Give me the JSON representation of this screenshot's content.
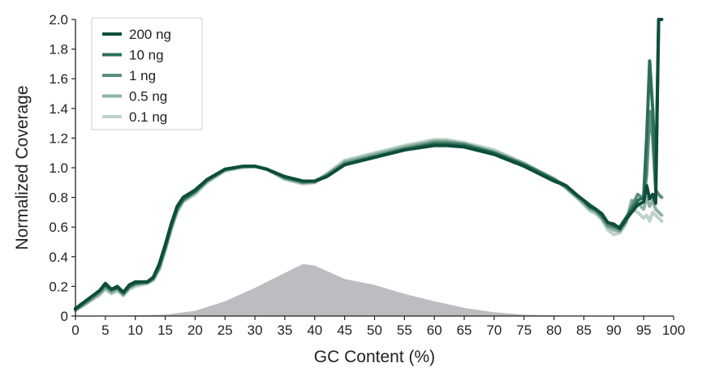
{
  "chart_data": {
    "type": "line",
    "title": "",
    "xlabel": "GC Content (%)",
    "ylabel": "Normalized Coverage",
    "xlim": [
      0,
      100
    ],
    "ylim": [
      0,
      2.0
    ],
    "x_ticks": [
      "0",
      "5",
      "10",
      "15",
      "20",
      "25",
      "30",
      "35",
      "40",
      "45",
      "50",
      "55",
      "60",
      "65",
      "70",
      "75",
      "80",
      "85",
      "90",
      "95",
      "100"
    ],
    "y_ticks": [
      "0",
      "0.2",
      "0.4",
      "0.6",
      "0.8",
      "1.0",
      "1.2",
      "1.4",
      "1.6",
      "1.8",
      "2.0"
    ],
    "grid": false,
    "legend_position": "top-left",
    "x": [
      0,
      2,
      4,
      5,
      6,
      7,
      8,
      9,
      10,
      11,
      12,
      13,
      14,
      15,
      16,
      17,
      18,
      20,
      22,
      25,
      28,
      30,
      32,
      35,
      38,
      40,
      42,
      45,
      50,
      55,
      60,
      62,
      65,
      70,
      75,
      80,
      82,
      84,
      85,
      86,
      87,
      88,
      89,
      90,
      91,
      92,
      93,
      94,
      95,
      95.5,
      96,
      96.5,
      97,
      97.5,
      98
    ],
    "series": [
      {
        "name": "200 ng",
        "color": "#0e4d3c",
        "values": [
          0.05,
          0.11,
          0.17,
          0.22,
          0.18,
          0.2,
          0.16,
          0.21,
          0.23,
          0.23,
          0.23,
          0.26,
          0.35,
          0.48,
          0.62,
          0.74,
          0.8,
          0.85,
          0.92,
          0.99,
          1.01,
          1.01,
          0.99,
          0.94,
          0.91,
          0.91,
          0.94,
          1.02,
          1.07,
          1.12,
          1.15,
          1.15,
          1.14,
          1.09,
          1.01,
          0.91,
          0.88,
          0.81,
          0.78,
          0.74,
          0.72,
          0.69,
          0.63,
          0.62,
          0.59,
          0.65,
          0.7,
          0.75,
          0.77,
          0.88,
          0.79,
          0.82,
          0.76,
          2.0,
          2.0
        ]
      },
      {
        "name": "10 ng",
        "color": "#2c6f58",
        "values": [
          0.05,
          0.11,
          0.17,
          0.21,
          0.18,
          0.19,
          0.16,
          0.2,
          0.22,
          0.23,
          0.23,
          0.26,
          0.34,
          0.47,
          0.61,
          0.73,
          0.79,
          0.84,
          0.92,
          0.99,
          1.01,
          1.01,
          0.99,
          0.94,
          0.91,
          0.91,
          0.94,
          1.02,
          1.07,
          1.12,
          1.16,
          1.16,
          1.15,
          1.1,
          1.02,
          0.92,
          0.88,
          0.81,
          0.78,
          0.75,
          0.72,
          0.68,
          0.63,
          0.61,
          0.6,
          0.66,
          0.72,
          0.78,
          0.8,
          1.2,
          1.72,
          1.4,
          0.9,
          2.0,
          2.0
        ]
      },
      {
        "name": "1 ng",
        "color": "#5e8f7a",
        "values": [
          0.04,
          0.1,
          0.16,
          0.2,
          0.17,
          0.19,
          0.15,
          0.2,
          0.22,
          0.22,
          0.23,
          0.25,
          0.33,
          0.46,
          0.6,
          0.72,
          0.78,
          0.84,
          0.91,
          0.99,
          1.01,
          1.01,
          0.99,
          0.93,
          0.9,
          0.91,
          0.95,
          1.03,
          1.08,
          1.13,
          1.17,
          1.17,
          1.16,
          1.1,
          1.02,
          0.92,
          0.87,
          0.8,
          0.77,
          0.73,
          0.71,
          0.67,
          0.61,
          0.6,
          0.58,
          0.64,
          0.74,
          0.82,
          0.79,
          0.95,
          1.38,
          1.2,
          0.85,
          0.82,
          0.8
        ]
      },
      {
        "name": "0.5 ng",
        "color": "#8fb2a2",
        "values": [
          0.04,
          0.09,
          0.15,
          0.19,
          0.16,
          0.18,
          0.14,
          0.19,
          0.21,
          0.22,
          0.22,
          0.25,
          0.32,
          0.45,
          0.59,
          0.71,
          0.78,
          0.83,
          0.91,
          0.98,
          1.01,
          1.01,
          0.99,
          0.93,
          0.9,
          0.9,
          0.95,
          1.04,
          1.09,
          1.14,
          1.18,
          1.18,
          1.16,
          1.11,
          1.03,
          0.92,
          0.87,
          0.8,
          0.76,
          0.72,
          0.7,
          0.66,
          0.6,
          0.58,
          0.57,
          0.63,
          0.78,
          0.76,
          0.72,
          0.8,
          0.74,
          0.78,
          0.72,
          0.7,
          0.68
        ]
      },
      {
        "name": "0.1 ng",
        "color": "#bed3c8",
        "values": [
          0.04,
          0.09,
          0.14,
          0.18,
          0.15,
          0.17,
          0.14,
          0.18,
          0.2,
          0.21,
          0.22,
          0.24,
          0.31,
          0.44,
          0.58,
          0.7,
          0.77,
          0.82,
          0.9,
          0.98,
          1.0,
          1.01,
          0.99,
          0.92,
          0.89,
          0.9,
          0.96,
          1.05,
          1.1,
          1.15,
          1.19,
          1.19,
          1.17,
          1.12,
          1.03,
          0.93,
          0.86,
          0.79,
          0.75,
          0.71,
          0.69,
          0.65,
          0.58,
          0.55,
          0.56,
          0.62,
          0.72,
          0.7,
          0.66,
          0.68,
          0.64,
          0.7,
          0.68,
          0.66,
          0.64
        ]
      }
    ],
    "distribution": {
      "color": "#bdbdc1",
      "x": [
        0,
        5,
        10,
        15,
        20,
        25,
        30,
        35,
        38,
        40,
        45,
        50,
        55,
        60,
        65,
        70,
        75,
        80,
        85,
        90,
        95,
        100
      ],
      "values": [
        0,
        0.002,
        0.004,
        0.01,
        0.035,
        0.1,
        0.19,
        0.29,
        0.35,
        0.34,
        0.25,
        0.21,
        0.15,
        0.1,
        0.055,
        0.025,
        0.01,
        0.004,
        0.002,
        0.001,
        0,
        0
      ]
    }
  }
}
